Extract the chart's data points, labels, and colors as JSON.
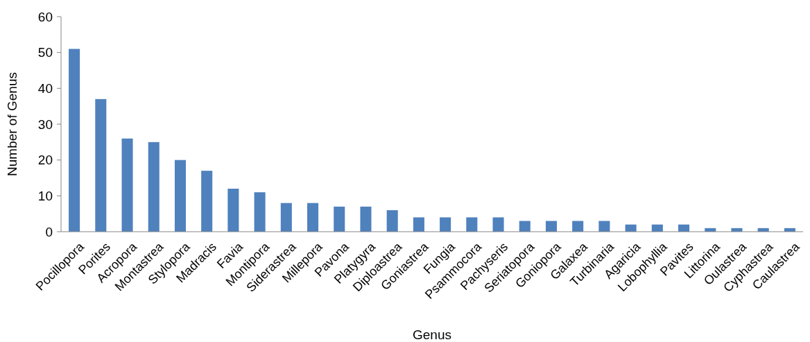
{
  "chart_data": {
    "type": "bar",
    "xlabel": "Genus",
    "ylabel": "Number of Genus",
    "categories": [
      "Pocillopora",
      "Porites",
      "Acropora",
      "Montastrea",
      "Stylopora",
      "Madracis",
      "Favia",
      "Montipora",
      "Siderastrea",
      "Millepora",
      "Pavona",
      "Platygyra",
      "Diploastrea",
      "Goniastrea",
      "Fungia",
      "Psammocora",
      "Pachyseris",
      "Seriatopora",
      "Goniopora",
      "Galaxea",
      "Turbinaria",
      "Agaricia",
      "Lobophyllia",
      "Pavites",
      "Littorina",
      "Oulastrea",
      "Cyphastrea",
      "Caulastrea"
    ],
    "values": [
      51,
      37,
      26,
      25,
      20,
      17,
      12,
      11,
      8,
      8,
      7,
      7,
      6,
      4,
      4,
      4,
      4,
      3,
      3,
      3,
      3,
      2,
      2,
      2,
      1,
      1,
      1,
      1
    ],
    "color": "#4f81bd",
    "ylim": [
      0,
      60
    ],
    "yticks": [
      0,
      10,
      20,
      30,
      40,
      50,
      60
    ],
    "grid": false
  }
}
